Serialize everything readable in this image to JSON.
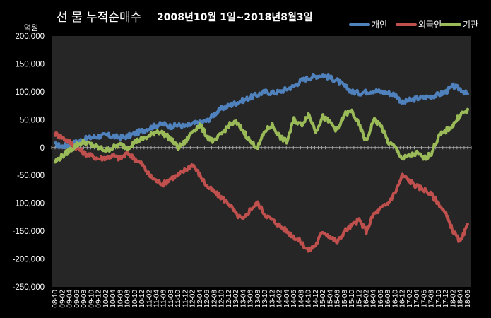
{
  "colors": {
    "background": "#000000",
    "plot_background": "#262626",
    "zero_line": "#a6a6a6",
    "text": "#ffffff"
  },
  "chart_data": {
    "type": "line",
    "title": "선 물 누적순매수",
    "subtitle": "2008년10월 1일~2018년8월3일",
    "ylabel": "억원",
    "ylim": [
      -250000,
      200000
    ],
    "yticks": [
      -250000,
      -200000,
      -150000,
      -100000,
      -50000,
      0,
      50000,
      100000,
      150000,
      200000
    ],
    "ytick_labels": [
      "-250,000",
      "-200,000",
      "-150,000",
      "-100,000",
      "-50,000",
      "0",
      "50,000",
      "100,000",
      "150,000",
      "200,000"
    ],
    "grid": false,
    "legend_position": "top-right",
    "x": [
      "08-10",
      "09-02",
      "09-04",
      "09-06",
      "09-08",
      "09-10",
      "09-12",
      "10-02",
      "10-04",
      "10-06",
      "10-08",
      "10-10",
      "10-12",
      "11-02",
      "11-04",
      "11-06",
      "11-08",
      "11-10",
      "11-12",
      "12-02",
      "12-04",
      "12-06",
      "12-08",
      "12-10",
      "12-12",
      "13-02",
      "13-04",
      "13-06",
      "13-08",
      "13-10",
      "13-12",
      "14-02",
      "14-04",
      "14-06",
      "14-08",
      "14-10",
      "14-12",
      "15-02",
      "15-04",
      "15-06",
      "15-08",
      "15-10",
      "15-12",
      "16-02",
      "16-04",
      "16-06",
      "16-08",
      "16-10",
      "16-12",
      "17-02",
      "17-04",
      "17-06",
      "17-08",
      "17-10",
      "17-12",
      "18-02",
      "18-04",
      "18-06"
    ],
    "x_labels_show": [
      "08-10",
      "09-02",
      "09-04",
      "09-06",
      "09-08",
      "09-10",
      "09-12",
      "10-02",
      "10-04",
      "10-06",
      "10-08",
      "10-10",
      "10-12",
      "11-02",
      "11-04",
      "11-06",
      "11-08",
      "11-10",
      "11-12",
      "12-02",
      "12-04",
      "12-06",
      "12-08",
      "12-10",
      "12-12",
      "13-02",
      "13-04",
      "13-06",
      "13-08",
      "13-10",
      "13-12",
      "14-02",
      "14-04",
      "14-06",
      "14-08",
      "14-10",
      "14-12",
      "15-02",
      "15-04",
      "15-06",
      "15-08",
      "15-10",
      "15-12",
      "16-02",
      "16-04",
      "16-06",
      "16-08",
      "16-10",
      "16-12",
      "17-02",
      "17-04",
      "17-06",
      "17-08",
      "17-10",
      "17-12",
      "18-02",
      "18-04",
      "18-06"
    ],
    "series": [
      {
        "name": "개인",
        "color": "#4f81bd",
        "values": [
          5000,
          2000,
          5000,
          10000,
          15000,
          18000,
          20000,
          22000,
          20000,
          18000,
          20000,
          25000,
          30000,
          35000,
          40000,
          42000,
          38000,
          40000,
          38000,
          42000,
          45000,
          48000,
          60000,
          70000,
          75000,
          80000,
          85000,
          90000,
          95000,
          100000,
          98000,
          100000,
          105000,
          110000,
          120000,
          125000,
          128000,
          130000,
          125000,
          120000,
          110000,
          100000,
          98000,
          100000,
          102000,
          100000,
          98000,
          95000,
          80000,
          85000,
          88000,
          90000,
          92000,
          95000,
          100000,
          110000,
          105000,
          95000
        ]
      },
      {
        "name": "외국인",
        "color": "#c0504d",
        "values": [
          25000,
          18000,
          10000,
          0,
          -10000,
          -15000,
          -20000,
          -18000,
          -15000,
          -20000,
          -10000,
          -20000,
          -30000,
          -50000,
          -60000,
          -65000,
          -55000,
          -50000,
          -40000,
          -30000,
          -50000,
          -70000,
          -80000,
          -90000,
          -100000,
          -120000,
          -130000,
          -110000,
          -100000,
          -120000,
          -130000,
          -140000,
          -150000,
          -160000,
          -170000,
          -185000,
          -175000,
          -150000,
          -160000,
          -170000,
          -150000,
          -140000,
          -130000,
          -150000,
          -120000,
          -110000,
          -100000,
          -80000,
          -50000,
          -60000,
          -70000,
          -75000,
          -85000,
          -100000,
          -120000,
          -150000,
          -170000,
          -140000
        ]
      },
      {
        "name": "기관",
        "color": "#9bbb59",
        "values": [
          -25000,
          -15000,
          -5000,
          5000,
          10000,
          5000,
          0,
          -5000,
          0,
          5000,
          0,
          10000,
          15000,
          20000,
          30000,
          25000,
          15000,
          0,
          10000,
          30000,
          40000,
          20000,
          10000,
          25000,
          40000,
          45000,
          30000,
          10000,
          0,
          30000,
          40000,
          20000,
          10000,
          50000,
          40000,
          60000,
          30000,
          55000,
          45000,
          30000,
          60000,
          65000,
          40000,
          10000,
          50000,
          40000,
          10000,
          0,
          -20000,
          -15000,
          -10000,
          -20000,
          -10000,
          20000,
          30000,
          40000,
          60000,
          65000
        ]
      }
    ]
  }
}
